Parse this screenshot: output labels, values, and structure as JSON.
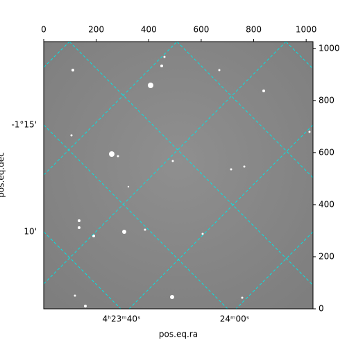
{
  "chart_data": {
    "type": "image",
    "xlabel": "pos.eq.ra",
    "ylabel": "pos.eq.dec",
    "xlim": [
      0,
      1026
    ],
    "xticks": [
      0,
      200,
      400,
      600,
      800,
      1000
    ],
    "ylim": [
      0,
      1026
    ],
    "yticks": [
      0,
      200,
      400,
      600,
      800,
      1000
    ],
    "ra_ticks": [
      "4ʰ23ᵐ40ˢ",
      "24ᵐ00ˢ"
    ],
    "dec_ticks": [
      "-1°15'",
      "10'"
    ],
    "grid": true,
    "grid_color": "#00e5e5"
  }
}
